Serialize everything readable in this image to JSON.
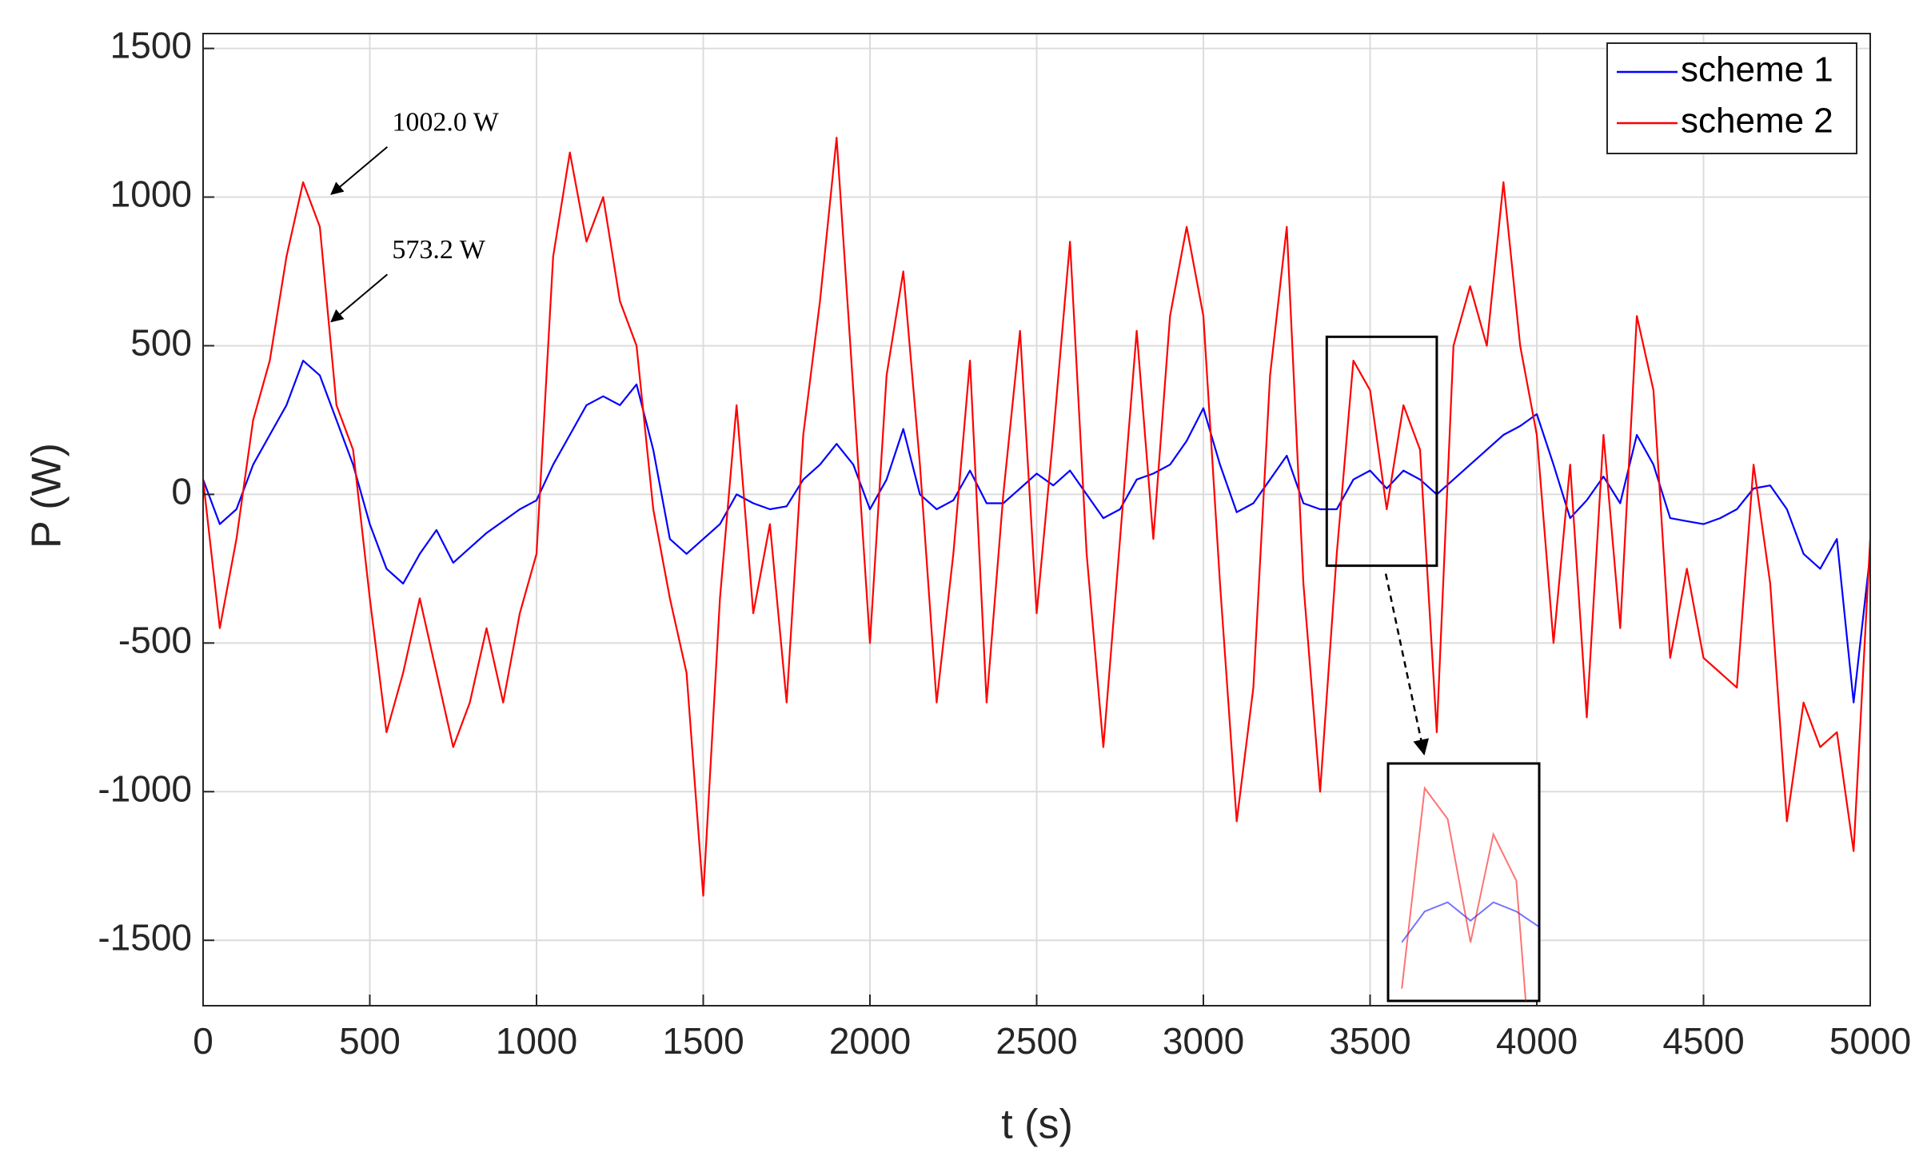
{
  "chart_data": {
    "type": "line",
    "xlabel": "t (s)",
    "ylabel": "P (W)",
    "x": [
      0,
      50,
      100,
      150,
      200,
      250,
      300,
      350,
      400,
      450,
      500,
      550,
      600,
      650,
      700,
      750,
      800,
      850,
      900,
      950,
      1000,
      1050,
      1100,
      1150,
      1200,
      1250,
      1300,
      1350,
      1400,
      1450,
      1500,
      1550,
      1600,
      1650,
      1700,
      1750,
      1800,
      1850,
      1900,
      1950,
      2000,
      2050,
      2100,
      2150,
      2200,
      2250,
      2300,
      2350,
      2400,
      2450,
      2500,
      2550,
      2600,
      2650,
      2700,
      2750,
      2800,
      2850,
      2900,
      2950,
      3000,
      3050,
      3100,
      3150,
      3200,
      3250,
      3300,
      3350,
      3400,
      3450,
      3500,
      3550,
      3600,
      3650,
      3700,
      3750,
      3800,
      3850,
      3900,
      3950,
      4000,
      4050,
      4100,
      4150,
      4200,
      4250,
      4300,
      4350,
      4400,
      4450,
      4500,
      4550,
      4600,
      4650,
      4700,
      4750,
      4800,
      4850,
      4900,
      4950,
      5000
    ],
    "series": [
      {
        "name": "scheme 1",
        "color": "#0000ff",
        "values": [
          50,
          -100,
          -50,
          100,
          200,
          300,
          450,
          400,
          250,
          100,
          -100,
          -250,
          -300,
          -200,
          -120,
          -230,
          -180,
          -130,
          -90,
          -50,
          -20,
          100,
          200,
          300,
          330,
          300,
          370,
          150,
          -150,
          -200,
          -150,
          -100,
          0,
          -30,
          -50,
          -40,
          50,
          100,
          170,
          100,
          -50,
          50,
          220,
          0,
          -50,
          -20,
          80,
          -30,
          -30,
          20,
          70,
          30,
          80,
          0,
          -80,
          -50,
          50,
          70,
          100,
          180,
          290,
          100,
          -60,
          -30,
          50,
          130,
          -30,
          -50,
          -50,
          50,
          80,
          20,
          80,
          50,
          0,
          50,
          100,
          150,
          200,
          230,
          270,
          100,
          -80,
          -20,
          60,
          -30,
          200,
          100,
          -80,
          -90,
          -100,
          -80,
          -50,
          20,
          30,
          -50,
          -200,
          -250,
          -150,
          -700,
          -200
        ]
      },
      {
        "name": "scheme 2",
        "color": "#ff0000",
        "values": [
          50,
          -450,
          -150,
          250,
          450,
          800,
          1050,
          900,
          300,
          150,
          -350,
          -800,
          -600,
          -350,
          -600,
          -850,
          -700,
          -450,
          -700,
          -400,
          -200,
          800,
          1150,
          850,
          1000,
          650,
          500,
          -50,
          -350,
          -600,
          -1350,
          -350,
          300,
          -400,
          -100,
          -700,
          200,
          650,
          1200,
          350,
          -500,
          400,
          750,
          100,
          -700,
          -200,
          450,
          -700,
          0,
          550,
          -400,
          200,
          850,
          -200,
          -850,
          -150,
          550,
          -150,
          600,
          900,
          600,
          -300,
          -1100,
          -650,
          400,
          900,
          -300,
          -1000,
          -200,
          450,
          350,
          -50,
          300,
          150,
          -800,
          500,
          700,
          500,
          1050,
          500,
          200,
          -500,
          100,
          -750,
          200,
          -450,
          600,
          350,
          -550,
          -250,
          -550,
          -600,
          -650,
          100,
          -300,
          -1100,
          -700,
          -850,
          -800,
          -1200,
          -150
        ]
      }
    ],
    "xlim": [
      0,
      5000
    ],
    "xticks": [
      0,
      500,
      1000,
      1500,
      2000,
      2500,
      3000,
      3500,
      4000,
      4500,
      5000
    ],
    "ylim": [
      -1720,
      1550
    ],
    "yticks": [
      -1500,
      -1000,
      -500,
      0,
      500,
      1000,
      1500
    ],
    "grid": true,
    "legend": "top-right",
    "annotations": [
      {
        "text": "1002.0 W",
        "x": 375,
        "y": 1002
      },
      {
        "text": "573.2 W",
        "x": 375,
        "y": 573.2
      }
    ],
    "zoom": {
      "xlim": [
        3370,
        3700
      ],
      "ylim": [
        -240,
        530
      ]
    }
  }
}
